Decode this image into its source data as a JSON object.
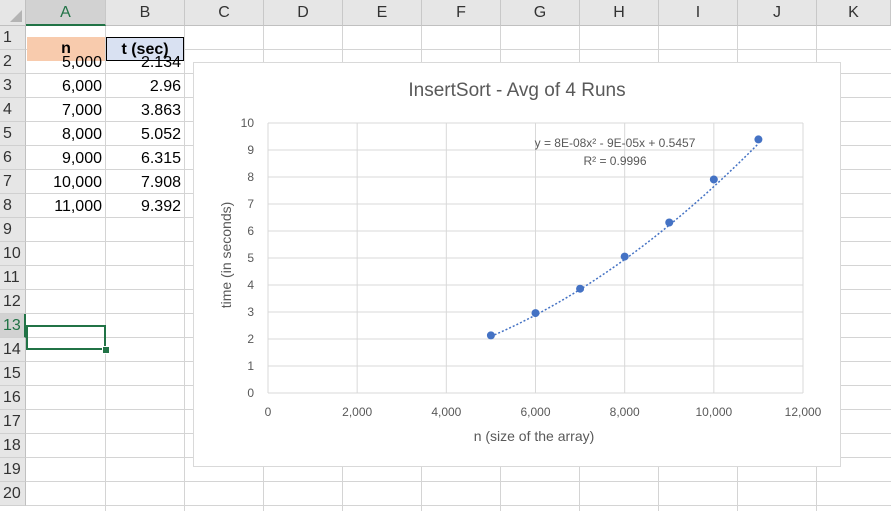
{
  "sheet": {
    "columns": [
      "A",
      "B",
      "C",
      "D",
      "E",
      "F",
      "G",
      "H",
      "I",
      "J",
      "K"
    ],
    "rows": [
      "1",
      "2",
      "3",
      "4",
      "5",
      "6",
      "7",
      "8",
      "9",
      "10",
      "11",
      "12",
      "13",
      "14",
      "15",
      "16",
      "17",
      "18",
      "19",
      "20"
    ],
    "selected_column": "A",
    "selected_row": "13",
    "header_row": {
      "n": "n",
      "t": "t (sec)",
      "n_fill": "#f8cbad",
      "t_fill": "#d9e1f2"
    },
    "data": [
      {
        "n": "5,000",
        "t": "2.134"
      },
      {
        "n": "6,000",
        "t": "2.96"
      },
      {
        "n": "7,000",
        "t": "3.863"
      },
      {
        "n": "8,000",
        "t": "5.052"
      },
      {
        "n": "9,000",
        "t": "6.315"
      },
      {
        "n": "10,000",
        "t": "7.908"
      },
      {
        "n": "11,000",
        "t": "9.392"
      }
    ],
    "accent_color": "#217346"
  },
  "chart_data": {
    "type": "scatter",
    "title": "InsertSort - Avg of 4 Runs",
    "xlabel": "n (size of the array)",
    "ylabel": "time (in seconds)",
    "xlim": [
      0,
      12000
    ],
    "ylim": [
      0,
      10
    ],
    "xticks": [
      "0",
      "2,000",
      "4,000",
      "6,000",
      "8,000",
      "10,000",
      "12,000"
    ],
    "yticks": [
      "0",
      "1",
      "2",
      "3",
      "4",
      "5",
      "6",
      "7",
      "8",
      "9",
      "10"
    ],
    "grid": true,
    "series": [
      {
        "x": [
          5000,
          6000,
          7000,
          8000,
          9000,
          10000,
          11000
        ],
        "y": [
          2.134,
          2.96,
          3.863,
          5.052,
          6.315,
          7.908,
          9.392
        ]
      }
    ],
    "trendline": {
      "type": "polynomial-2",
      "equation": "y = 8E-08x² - 9E-05x + 0.5457",
      "r_squared": "R² = 0.9996",
      "coefficients": [
        8e-08,
        -9e-05,
        0.5457
      ]
    },
    "marker_color": "#4472c4"
  }
}
